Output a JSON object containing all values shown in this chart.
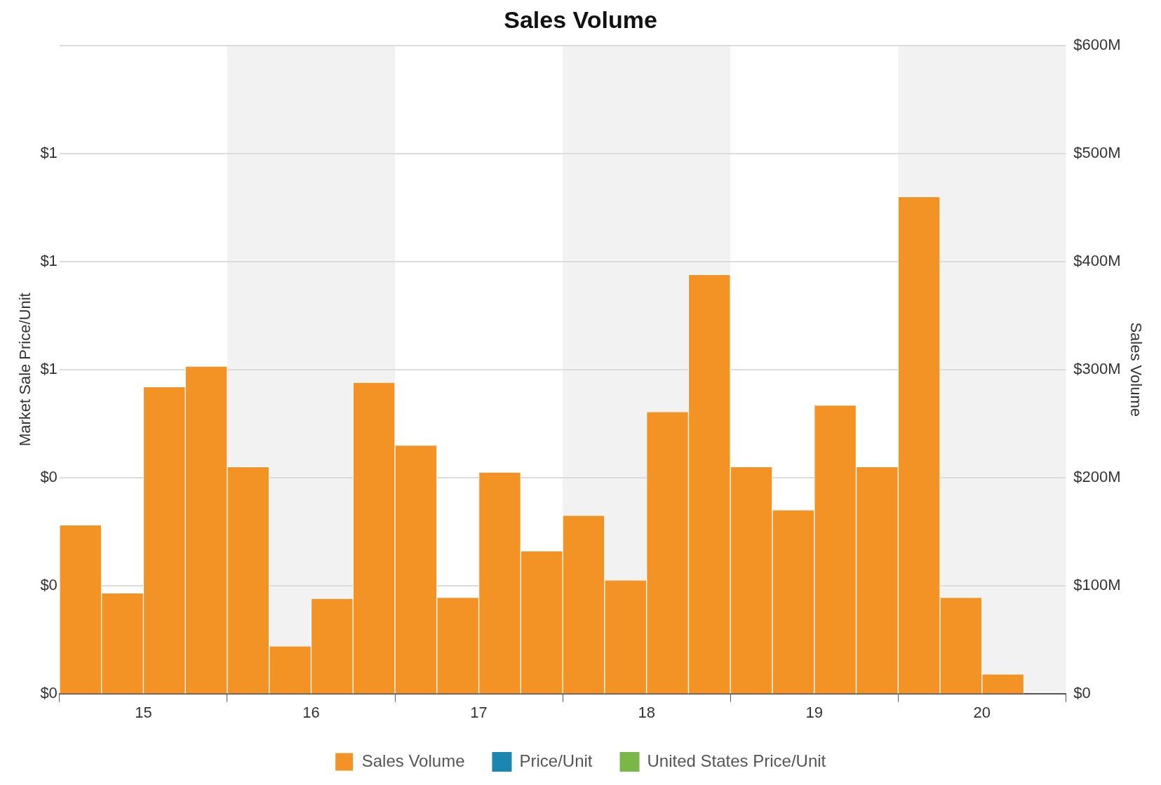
{
  "chart_data": {
    "type": "bar",
    "title": "Sales Volume",
    "ylabel": "Market Sale Price/Unit",
    "y2label": "Sales Volume",
    "x": [
      14.625,
      14.875,
      15.125,
      15.375,
      15.625,
      15.875,
      16.125,
      16.375,
      16.625,
      16.875,
      17.125,
      17.375,
      17.625,
      17.875,
      18.125,
      18.375,
      18.625,
      18.875,
      19.125,
      19.375,
      19.625,
      19.875,
      20.125
    ],
    "xlim": [
      14.5,
      20.5
    ],
    "xticks": [
      {
        "value": 14.5,
        "label": null
      },
      15,
      {
        "value": 15.5,
        "label": null
      },
      16,
      {
        "value": 16.5,
        "label": null
      },
      17,
      {
        "value": 17.5,
        "label": null
      },
      18,
      {
        "value": 18.5,
        "label": null
      },
      19,
      {
        "value": 19.5,
        "label": null
      },
      20,
      {
        "value": 20.5,
        "label": null
      }
    ],
    "ylim": [
      0,
      1.2
    ],
    "yticks": [
      {
        "value": 0,
        "label": "$0"
      },
      {
        "value": 0.2,
        "label": "$0"
      },
      {
        "value": 0.4,
        "label": "$0"
      },
      {
        "value": 0.6,
        "label": "$1"
      },
      {
        "value": 0.8,
        "label": "$1"
      },
      {
        "value": 1.0,
        "label": "$1"
      },
      {
        "value": 1.2,
        "label": null
      }
    ],
    "y2lim": [
      0,
      600
    ],
    "y2ticks": [
      {
        "value": 0,
        "label": "$0"
      },
      {
        "value": 100,
        "label": "$100M"
      },
      {
        "value": 200,
        "label": "$200M"
      },
      {
        "value": 300,
        "label": "$300M"
      },
      {
        "value": 400,
        "label": "$400M"
      },
      {
        "value": 500,
        "label": "$500M"
      },
      {
        "value": 600,
        "label": "$600M"
      }
    ],
    "series": [
      {
        "name": "Sales Volume",
        "color": "#f39325",
        "axis": "y2",
        "values": [
          156,
          93,
          284,
          303,
          210,
          44,
          88,
          288,
          230,
          89,
          205,
          132,
          165,
          105,
          261,
          388,
          210,
          170,
          267,
          210,
          460,
          89,
          18
        ]
      },
      {
        "name": "Price/Unit",
        "type": "line",
        "color": "#1b87b0",
        "values": [
          null,
          null,
          null,
          null,
          null,
          null,
          null,
          null,
          null,
          null,
          null,
          null,
          null,
          null,
          null,
          null,
          null,
          null,
          null,
          null,
          null,
          null,
          null
        ]
      },
      {
        "name": "United States Price/Unit",
        "type": "line",
        "color": "#7ab648",
        "values": [
          null,
          null,
          null,
          null,
          null,
          null,
          null,
          null,
          null,
          null,
          null,
          null,
          null,
          null,
          null,
          null,
          null,
          null,
          null,
          null,
          null,
          null,
          null
        ]
      }
    ],
    "bands": [
      {
        "axis": "x",
        "from": 15.5,
        "to": 16.5,
        "color": "#f2f2f2"
      },
      {
        "axis": "x",
        "from": 17.5,
        "to": 18.5,
        "color": "#f2f2f2"
      },
      {
        "axis": "x",
        "from": 19.5,
        "to": 20.5,
        "color": "#f2f2f2"
      }
    ],
    "grid": "y",
    "legend": "bottom"
  }
}
